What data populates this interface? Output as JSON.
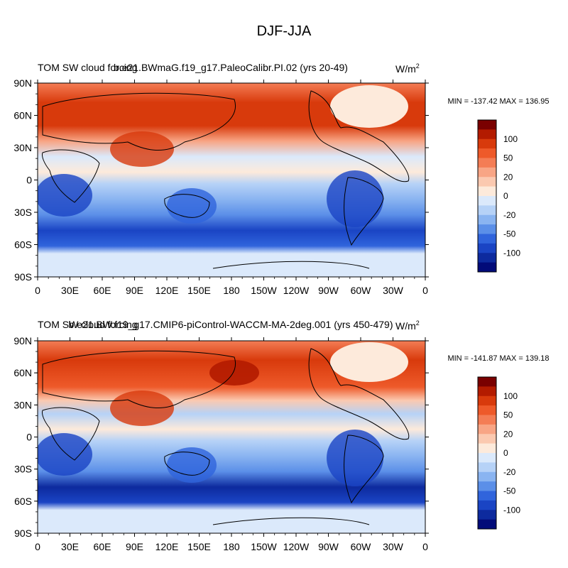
{
  "figure": {
    "title": "DJF-JJA"
  },
  "chart_data": [
    {
      "type": "heatmap",
      "title_left": "TOM SW cloud forcing",
      "title_center": "b.e21.BWmaG.f19_g17.PaleoCalibr.PI.02 (yrs 20-49)",
      "units_base": "W/m",
      "units_exp": "2",
      "stats": "MIN = -137.42 MAX = 136.95",
      "x_ticks": [
        "0",
        "30E",
        "60E",
        "90E",
        "120E",
        "150E",
        "180",
        "150W",
        "120W",
        "90W",
        "60W",
        "30W",
        "0"
      ],
      "y_ticks": [
        "90N",
        "60N",
        "30N",
        "0",
        "30S",
        "60S",
        "90S"
      ],
      "xlim": [
        0,
        360
      ],
      "ylim": [
        -90,
        90
      ],
      "colorbar_labels": [
        "100",
        "50",
        "20",
        "0",
        "-20",
        "-50",
        "-100"
      ],
      "min": -137.42,
      "max": 136.95
    },
    {
      "type": "heatmap",
      "title_left": "TOM SW cloud forcing",
      "title_center": "b.e21.BW.f19_g17.CMIP6-piControl-WACCM-MA-2deg.001 (yrs 450-479)",
      "units_base": "W/m",
      "units_exp": "2",
      "stats": "MIN = -141.87 MAX = 139.18",
      "x_ticks": [
        "0",
        "30E",
        "60E",
        "90E",
        "120E",
        "150E",
        "180",
        "150W",
        "120W",
        "90W",
        "60W",
        "30W",
        "0"
      ],
      "y_ticks": [
        "90N",
        "60N",
        "30N",
        "0",
        "30S",
        "60S",
        "90S"
      ],
      "xlim": [
        0,
        360
      ],
      "ylim": [
        -90,
        90
      ],
      "colorbar_labels": [
        "100",
        "50",
        "20",
        "0",
        "-20",
        "-50",
        "-100"
      ],
      "min": -141.87,
      "max": 139.18
    }
  ],
  "colorbar_colors": [
    "#7a0000",
    "#b31b00",
    "#d83a0c",
    "#ee5a2a",
    "#f47d55",
    "#f8a585",
    "#fbc9b0",
    "#fdeadb",
    "#dbe9fb",
    "#b6d2f7",
    "#8ab4f1",
    "#5b8fe8",
    "#3064dc",
    "#1a44c4",
    "#0d2a9e",
    "#020b79"
  ]
}
